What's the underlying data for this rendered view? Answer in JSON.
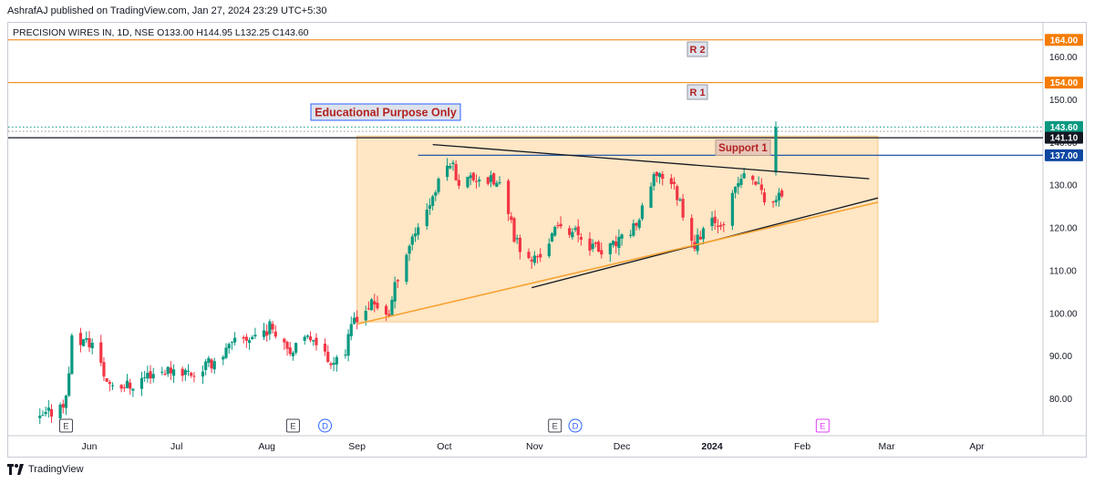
{
  "header": {
    "published": "AshrafAJ published on TradingView.com, Jan 27, 2024 23:29 UTC+5:30"
  },
  "symbol_line": "PRECISION WIRES IN, 1D, NSE  O133.00  H144.95  L132.25  C143.60",
  "footer": {
    "brand": "TradingView"
  },
  "colors": {
    "up": "#089981",
    "down": "#f23645",
    "resistance": "#f57c00",
    "support_blue": "#0d47a1",
    "zone": "#ffe6c4",
    "orange_trend": "#f7a231",
    "black_trend": "#131722"
  },
  "chart_data": {
    "type": "candlestick",
    "symbol": "PRECISION WIRES IN",
    "interval": "1D",
    "exchange": "NSE",
    "ohlc_last": {
      "open": 133.0,
      "high": 144.95,
      "low": 132.25,
      "close": 143.6
    },
    "ylim": [
      72,
      168
    ],
    "y_ticks": [
      "80.00",
      "90.00",
      "100.00",
      "110.00",
      "120.00",
      "130.00",
      "140.00",
      "150.00",
      "160.00"
    ],
    "x_tick_labels": [
      "Jun",
      "Jul",
      "Aug",
      "Sep",
      "Oct",
      "Nov",
      "Dec",
      "2024",
      "Feb",
      "Mar",
      "Apr"
    ],
    "price_labels": [
      {
        "value": 164.0,
        "text": "164.00",
        "color": "#f57c00"
      },
      {
        "value": 154.0,
        "text": "154.00",
        "color": "#f57c00"
      },
      {
        "value": 143.6,
        "text": "143.60",
        "color": "#089981"
      },
      {
        "value": 141.1,
        "text": "141.10",
        "color": "#131722"
      },
      {
        "value": 137.0,
        "text": "137.00",
        "color": "#0d47a1"
      }
    ],
    "levels": [
      {
        "label": "R 2",
        "value": 164.0
      },
      {
        "label": "R 1",
        "value": 154.0
      },
      {
        "label": "Support 1",
        "value": 137.0
      }
    ],
    "annotations": [
      "Educational Purpose Only",
      "R 2",
      "R 1",
      "Support 1"
    ],
    "markers": [
      {
        "text": "E",
        "date": "2023-05-24",
        "kind": "earnings"
      },
      {
        "text": "E",
        "date": "2023-08-10",
        "kind": "earnings"
      },
      {
        "text": "D",
        "date": "2023-08-21",
        "kind": "dividend"
      },
      {
        "text": "E",
        "date": "2023-11-08",
        "kind": "earnings"
      },
      {
        "text": "D",
        "date": "2023-11-15",
        "kind": "dividend"
      },
      {
        "text": "E",
        "date": "2024-02-08",
        "kind": "earnings-upcoming"
      }
    ],
    "anchors": [
      [
        "2023-05-15",
        75
      ],
      [
        "2023-05-19",
        77
      ],
      [
        "2023-05-24",
        80
      ],
      [
        "2023-05-26",
        94
      ],
      [
        "2023-06-02",
        93
      ],
      [
        "2023-06-07",
        84
      ],
      [
        "2023-06-15",
        83
      ],
      [
        "2023-06-22",
        86
      ],
      [
        "2023-06-30",
        87
      ],
      [
        "2023-07-07",
        86
      ],
      [
        "2023-07-14",
        89
      ],
      [
        "2023-07-21",
        93
      ],
      [
        "2023-07-28",
        95
      ],
      [
        "2023-08-03",
        97
      ],
      [
        "2023-08-10",
        91
      ],
      [
        "2023-08-17",
        95
      ],
      [
        "2023-08-22",
        89
      ],
      [
        "2023-08-28",
        91
      ],
      [
        "2023-08-31",
        99
      ],
      [
        "2023-09-06",
        102
      ],
      [
        "2023-09-12",
        100
      ],
      [
        "2023-09-15",
        109
      ],
      [
        "2023-09-20",
        118
      ],
      [
        "2023-09-26",
        126
      ],
      [
        "2023-10-03",
        136
      ],
      [
        "2023-10-06",
        131
      ],
      [
        "2023-10-13",
        132
      ],
      [
        "2023-10-20",
        130
      ],
      [
        "2023-10-25",
        118
      ],
      [
        "2023-10-30",
        112
      ],
      [
        "2023-11-03",
        114
      ],
      [
        "2023-11-10",
        121
      ],
      [
        "2023-11-17",
        118
      ],
      [
        "2023-11-24",
        114
      ],
      [
        "2023-12-01",
        117
      ],
      [
        "2023-12-07",
        122
      ],
      [
        "2023-12-13",
        133
      ],
      [
        "2023-12-18",
        131
      ],
      [
        "2023-12-21",
        126
      ],
      [
        "2023-12-26",
        116
      ],
      [
        "2023-12-29",
        120
      ],
      [
        "2024-01-05",
        122
      ],
      [
        "2024-01-11",
        132
      ],
      [
        "2024-01-16",
        131
      ],
      [
        "2024-01-19",
        127
      ],
      [
        "2024-01-23",
        126
      ],
      [
        "2024-01-25",
        128
      ],
      [
        "2024-01-26",
        133
      ]
    ],
    "last_candle": {
      "date": "2024-01-27",
      "open": 133.0,
      "high": 144.95,
      "low": 132.25,
      "close": 143.6
    },
    "drawings": {
      "zone": {
        "from": "2023-09-01",
        "to": "2024-02-27",
        "low": 98,
        "high": 141.5
      },
      "black_upper_trend": [
        [
          "2023-09-27",
          139.5
        ],
        [
          "2024-02-24",
          131.5
        ]
      ],
      "black_lower_trend": [
        [
          "2023-10-31",
          106
        ],
        [
          "2024-02-27",
          127
        ]
      ],
      "orange_trend": [
        [
          "2023-09-01",
          97.5
        ],
        [
          "2024-02-27",
          126
        ]
      ],
      "blue_support": {
        "from": "2023-09-22",
        "value": 137.0
      },
      "black_line": {
        "value": 141.1
      }
    }
  }
}
